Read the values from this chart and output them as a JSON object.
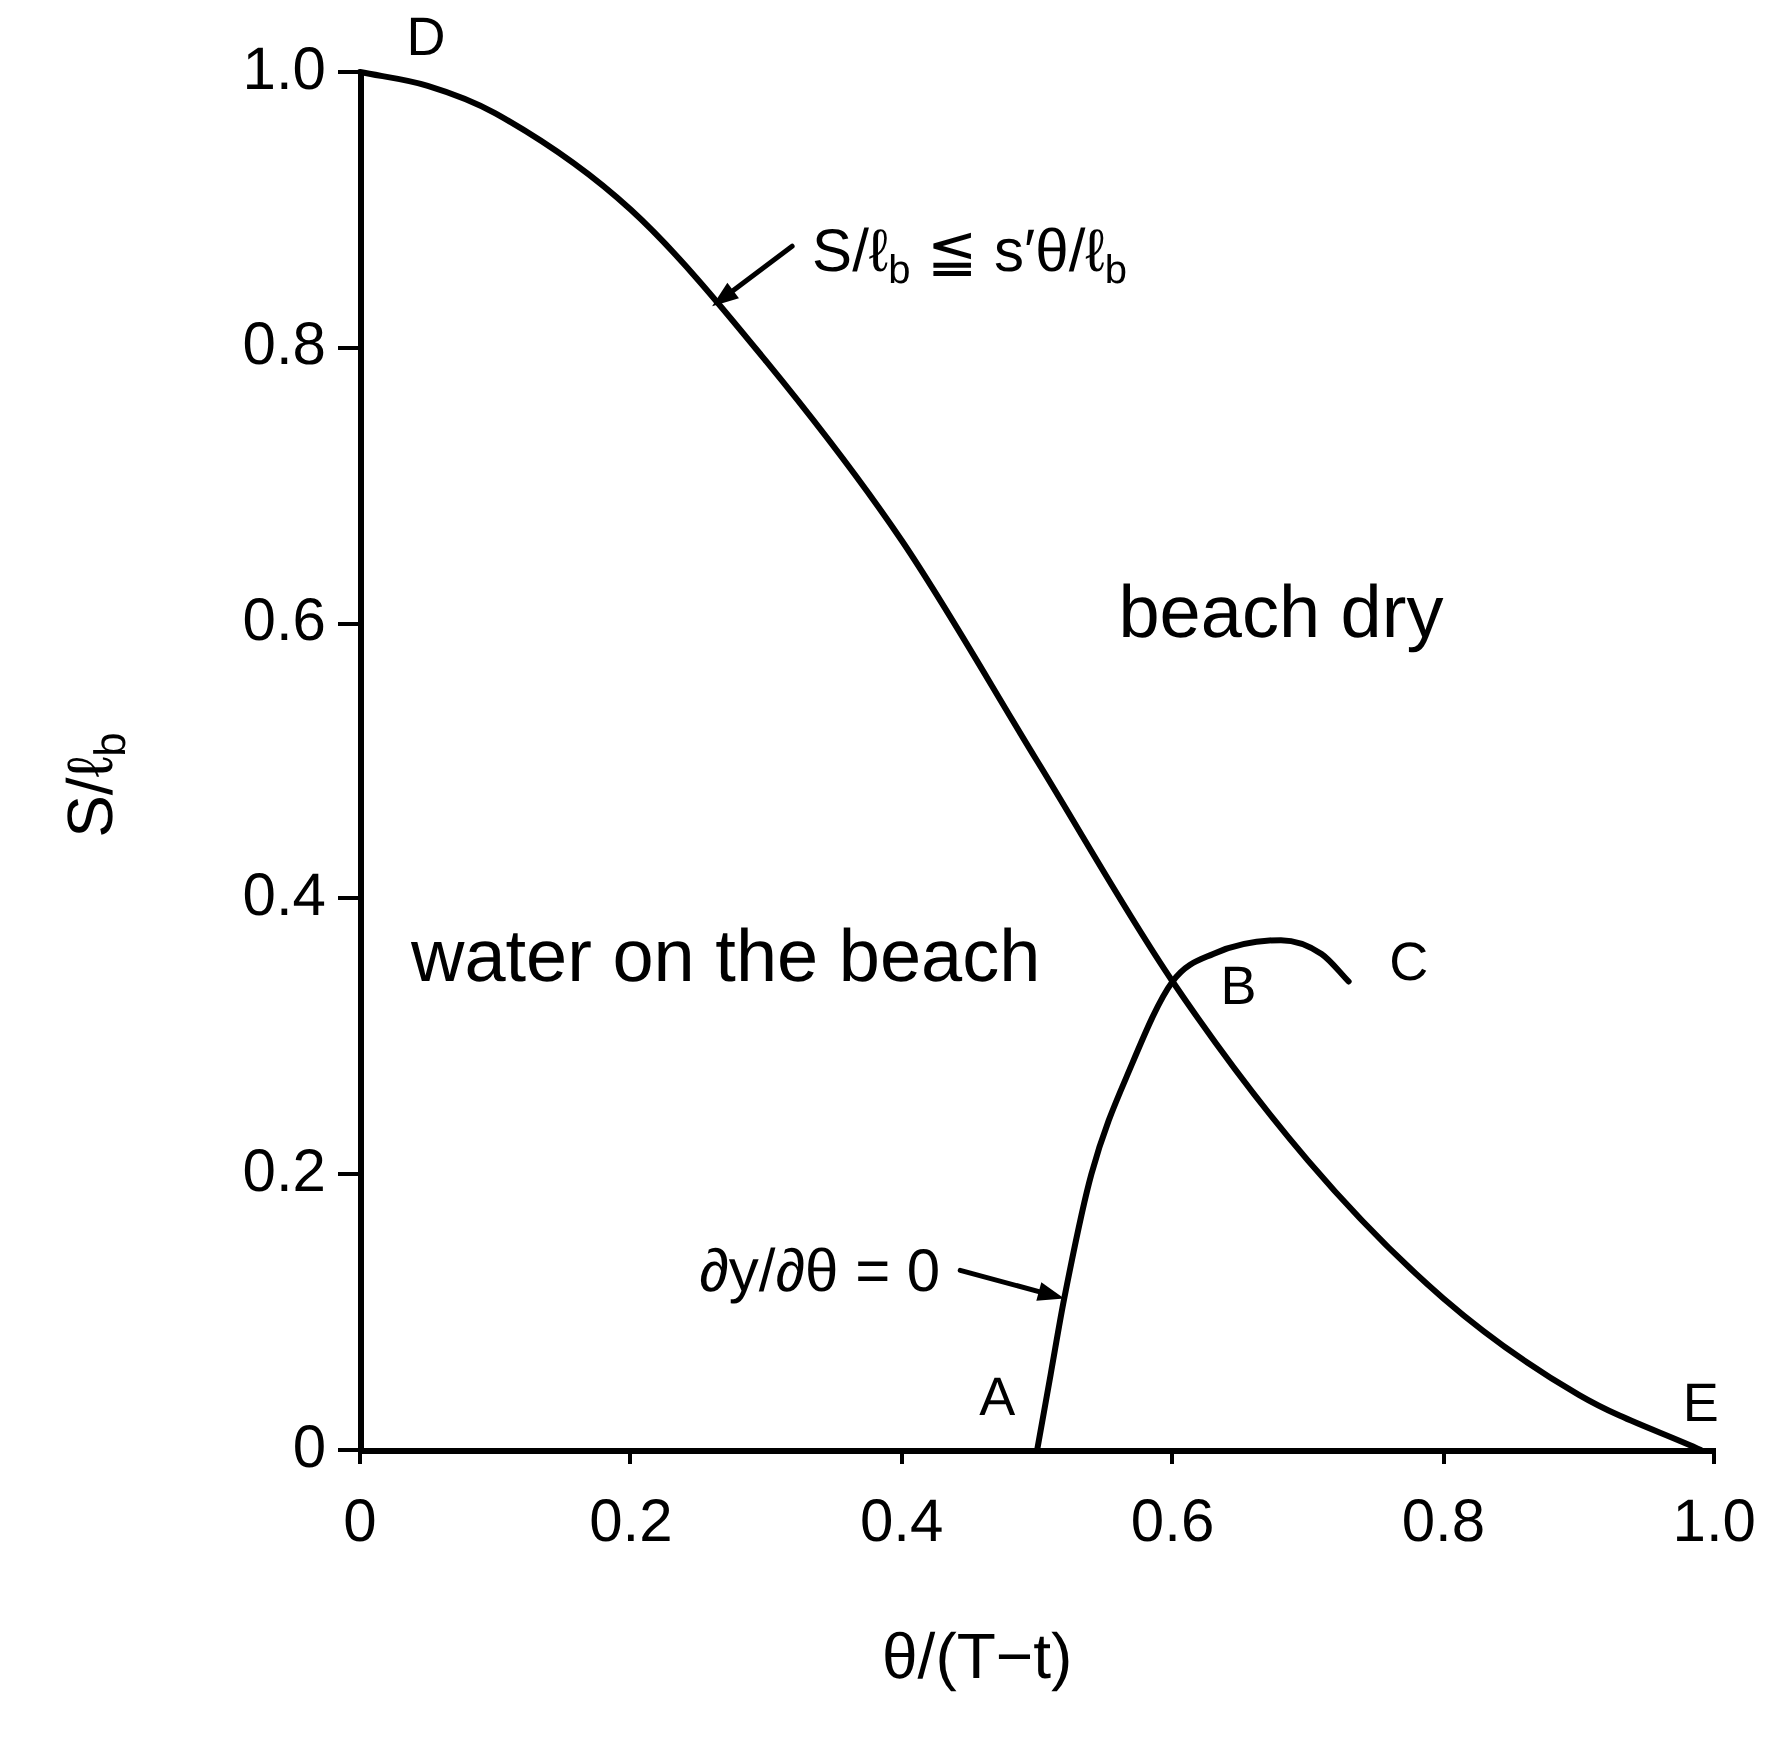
{
  "chart_data": {
    "type": "line",
    "xlabel": "θ/(T−t)",
    "ylabel": "S/ℓ$_{b}$",
    "xlim": [
      0,
      1
    ],
    "ylim": [
      0,
      1
    ],
    "xticks": [
      0,
      0.2,
      0.4,
      0.6,
      0.8,
      {
        "value": 1,
        "label": "1.0"
      }
    ],
    "yticks": [
      0,
      0.2,
      0.4,
      0.6,
      0.8,
      {
        "value": 1,
        "label": "1.0"
      }
    ],
    "series": [
      {
        "color": "#000000",
        "x": [
          0,
          0.05,
          0.1,
          0.2,
          0.3,
          0.4,
          0.5,
          0.6,
          0.7,
          0.8,
          0.9,
          0.99
        ],
        "values": [
          1,
          0.99,
          0.97,
          0.9,
          0.79,
          0.66,
          0.5,
          0.34,
          0.21,
          0.11,
          0.04,
          0
        ]
      },
      {
        "color": "#000000",
        "x": [
          0.5,
          0.51,
          0.52,
          0.54,
          0.57,
          0.6,
          0.63,
          0.68,
          0.71,
          0.73
        ],
        "values": [
          0,
          0.055,
          0.11,
          0.2,
          0.28,
          0.34,
          0.36,
          0.37,
          0.36,
          0.34
        ]
      }
    ],
    "annotations": [
      {
        "text": "D",
        "x": 0,
        "y": 1
      },
      {
        "text": "S/ℓ$_{b}$ ≦ s′θ/ℓ$_{b}$",
        "x": 0.26,
        "y": 0.83
      },
      "beach dry",
      "water on the beach",
      {
        "text": "∂y/∂θ = 0",
        "x": 0.52,
        "y": 0.11
      },
      {
        "text": "A",
        "x": 0.5,
        "y": 0
      },
      {
        "text": "B",
        "x": 0.6,
        "y": 0.34
      },
      {
        "text": "C",
        "x": 0.73,
        "y": 0.34
      },
      {
        "text": "E",
        "x": 0.99,
        "y": 0
      }
    ]
  }
}
